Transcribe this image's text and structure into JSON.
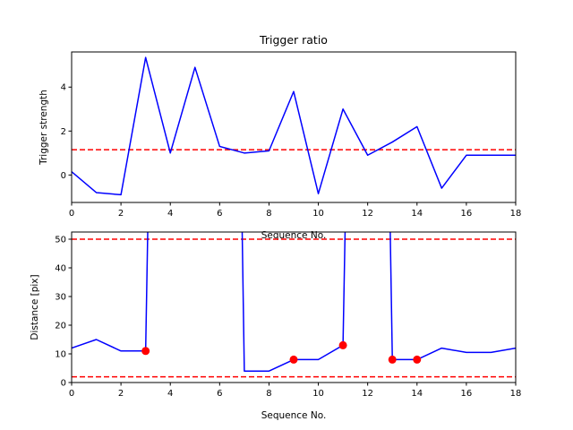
{
  "chart_data": [
    {
      "type": "line",
      "title": "Trigger ratio",
      "xlabel": "Sequence No.",
      "ylabel": "Trigger strength",
      "xlim": [
        0,
        18
      ],
      "ylim": [
        -1.25,
        5.6
      ],
      "xticks": [
        0,
        2,
        4,
        6,
        8,
        10,
        12,
        14,
        16,
        18
      ],
      "yticks": [
        0,
        2,
        4
      ],
      "grid": false,
      "series": [
        {
          "color": "#0000ff",
          "style": "solid",
          "x": [
            0,
            1,
            2,
            3,
            4,
            5,
            6,
            7,
            8,
            9,
            10,
            11,
            12,
            13,
            14,
            15,
            16,
            17,
            18
          ],
          "y": [
            0.15,
            -0.8,
            -0.9,
            5.35,
            1.0,
            4.9,
            1.3,
            1.0,
            1.1,
            3.8,
            -0.85,
            3.0,
            0.9,
            1.5,
            2.2,
            -0.6,
            0.9,
            0.9,
            0.9
          ]
        }
      ],
      "hlines": [
        {
          "y": 1.15,
          "color": "#ff0000",
          "style": "dashed"
        }
      ]
    },
    {
      "type": "line",
      "title": "",
      "xlabel": "Sequence No.",
      "ylabel": "Distance [pix]",
      "xlim": [
        0,
        18
      ],
      "ylim": [
        0,
        52.5
      ],
      "xticks": [
        0,
        2,
        4,
        6,
        8,
        10,
        12,
        14,
        16,
        18
      ],
      "yticks": [
        0,
        10,
        20,
        30,
        40,
        50
      ],
      "grid": false,
      "series": [
        {
          "color": "#0000ff",
          "style": "solid",
          "x": [
            0,
            1,
            2,
            3,
            3.1,
            6.9,
            7,
            8,
            9,
            10,
            11,
            11.1,
            12.9,
            13,
            14,
            15,
            16,
            17,
            18
          ],
          "y": [
            12,
            15,
            11,
            11,
            60,
            60,
            4,
            4,
            8,
            8,
            13,
            60,
            60,
            8,
            8,
            12,
            10.5,
            10.5,
            12
          ]
        }
      ],
      "markers": {
        "color": "#ff0000",
        "x": [
          3,
          9,
          11,
          13,
          14
        ],
        "y": [
          11,
          8,
          13,
          8,
          8
        ]
      },
      "hlines": [
        {
          "y": 50,
          "color": "#ff0000",
          "style": "dashed"
        },
        {
          "y": 2,
          "color": "#ff0000",
          "style": "dashed"
        }
      ]
    }
  ]
}
